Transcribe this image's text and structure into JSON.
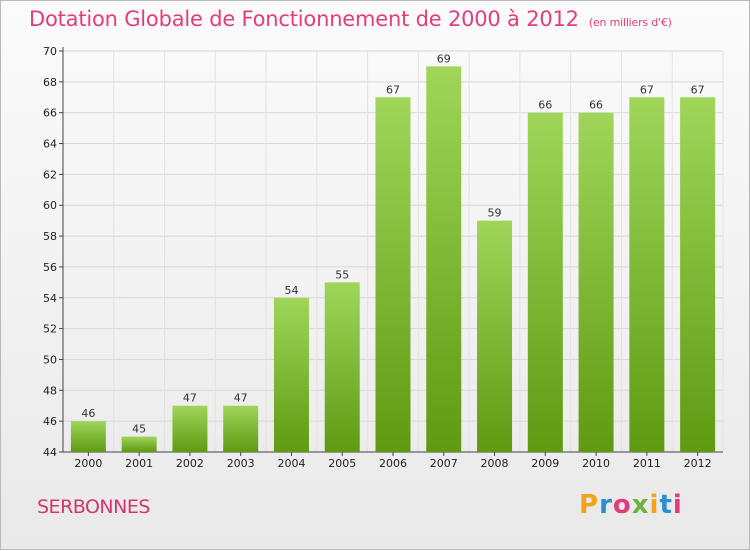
{
  "header": {
    "title": "Dotation Globale de Fonctionnement de 2000 à 2012",
    "subtitle": "(en milliers d'€)"
  },
  "footer": {
    "place": "SERBONNES",
    "logo": "Proxiti",
    "logo_colors": [
      "#f2a31a",
      "#2b8fd0",
      "#e23a7a",
      "#6cb33e",
      "#f2a31a",
      "#2b8fd0",
      "#e23a7a"
    ]
  },
  "chart_data": {
    "type": "bar",
    "categories": [
      "2000",
      "2001",
      "2002",
      "2003",
      "2004",
      "2005",
      "2006",
      "2007",
      "2008",
      "2009",
      "2010",
      "2011",
      "2012"
    ],
    "values": [
      46,
      45,
      47,
      47,
      54,
      55,
      67,
      69,
      59,
      66,
      66,
      67,
      67
    ],
    "ylim": [
      44,
      70
    ],
    "yticks": [
      44,
      46,
      48,
      50,
      52,
      54,
      56,
      58,
      60,
      62,
      64,
      66,
      68,
      70
    ],
    "grid": true,
    "bar_color_top": "#9fd65a",
    "bar_color_bottom": "#5f9a12"
  }
}
